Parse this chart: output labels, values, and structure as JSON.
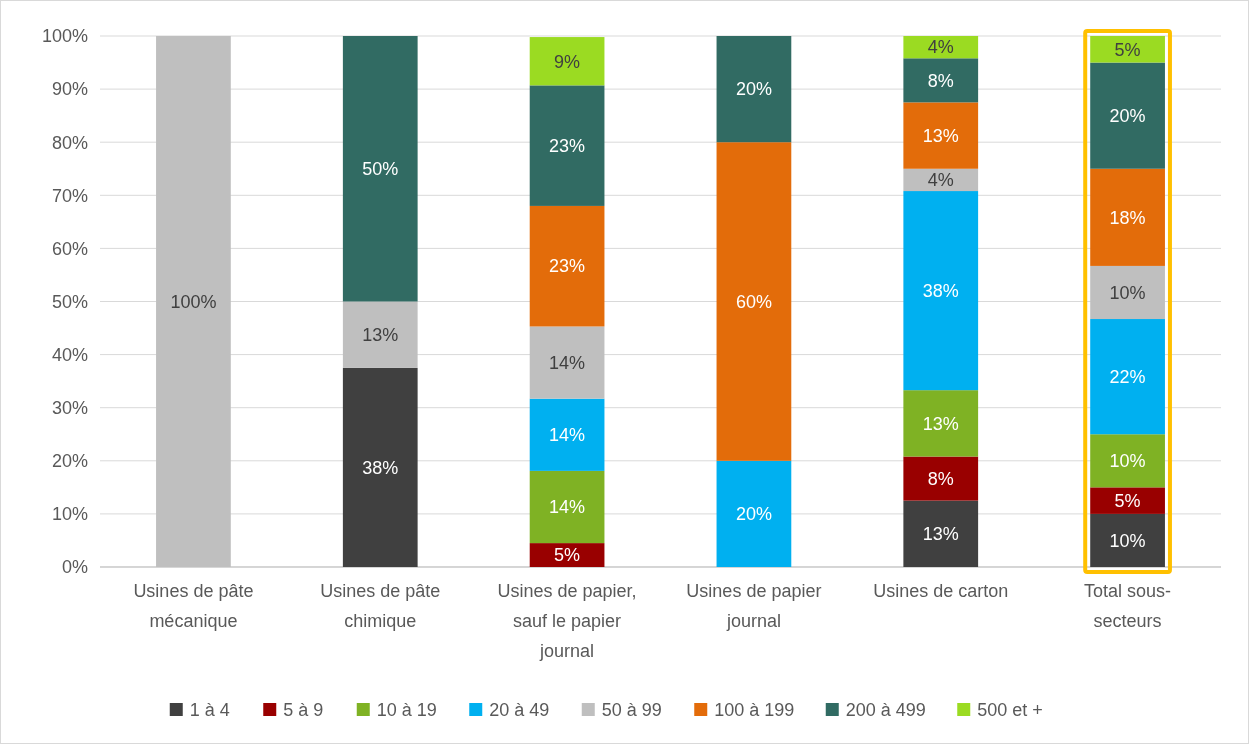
{
  "chart_data": {
    "type": "bar",
    "stacked": true,
    "categories": [
      "Usines de pâte mécanique",
      "Usines de pâte chimique",
      "Usines de papier, sauf le papier journal",
      "Usines de papier journal",
      "Usines de carton",
      "Total sous-secteurs"
    ],
    "series": [
      {
        "name": "1 à 4",
        "color": "#404040",
        "values": [
          null,
          37.5,
          null,
          null,
          12.5,
          10
        ],
        "value_labels": [
          null,
          "38%",
          null,
          null,
          "13%",
          "10%"
        ]
      },
      {
        "name": "5 à 9",
        "color": "#990000",
        "values": [
          null,
          null,
          4.5,
          null,
          8.3,
          5
        ],
        "value_labels": [
          null,
          null,
          "5%",
          null,
          "8%",
          "5%"
        ]
      },
      {
        "name": "10 à 19",
        "color": "#7fb224",
        "values": [
          null,
          null,
          13.6,
          null,
          12.5,
          10
        ],
        "value_labels": [
          null,
          null,
          "14%",
          null,
          "13%",
          "10%"
        ]
      },
      {
        "name": "20 à 49",
        "color": "#00b0f0",
        "values": [
          null,
          null,
          13.6,
          20,
          37.5,
          21.7
        ],
        "value_labels": [
          null,
          null,
          "14%",
          "20%",
          "38%",
          "22%"
        ]
      },
      {
        "name": "50 à 99",
        "color": "#bfbfbf",
        "values": [
          100,
          12.5,
          13.6,
          null,
          4.2,
          10
        ],
        "value_labels": [
          "100%",
          "13%",
          "14%",
          null,
          "4%",
          "10%"
        ]
      },
      {
        "name": "100 à 199",
        "color": "#e36c0a",
        "values": [
          null,
          null,
          22.7,
          60,
          12.5,
          18.3
        ],
        "value_labels": [
          null,
          null,
          "23%",
          "60%",
          "13%",
          "18%"
        ]
      },
      {
        "name": "200 à 499",
        "color": "#316b63",
        "values": [
          null,
          50,
          22.7,
          20,
          8.3,
          20
        ],
        "value_labels": [
          null,
          "50%",
          "23%",
          "20%",
          "8%",
          "20%"
        ]
      },
      {
        "name": "500 et +",
        "color": "#9bdb22",
        "values": [
          null,
          null,
          9.1,
          null,
          4.2,
          5
        ],
        "value_labels": [
          null,
          null,
          "9%",
          null,
          "4%",
          "5%"
        ]
      }
    ],
    "ylim": [
      0,
      100
    ],
    "yticks": [
      {
        "value": 0,
        "label": "0%"
      },
      {
        "value": 10,
        "label": "10%"
      },
      {
        "value": 20,
        "label": "20%"
      },
      {
        "value": 30,
        "label": "30%"
      },
      {
        "value": 40,
        "label": "40%"
      },
      {
        "value": 50,
        "label": "50%"
      },
      {
        "value": 60,
        "label": "60%"
      },
      {
        "value": 70,
        "label": "70%"
      },
      {
        "value": 80,
        "label": "80%"
      },
      {
        "value": 90,
        "label": "90%"
      },
      {
        "value": 100,
        "label": "100%"
      }
    ],
    "grid": "y",
    "legend": "bottom"
  }
}
